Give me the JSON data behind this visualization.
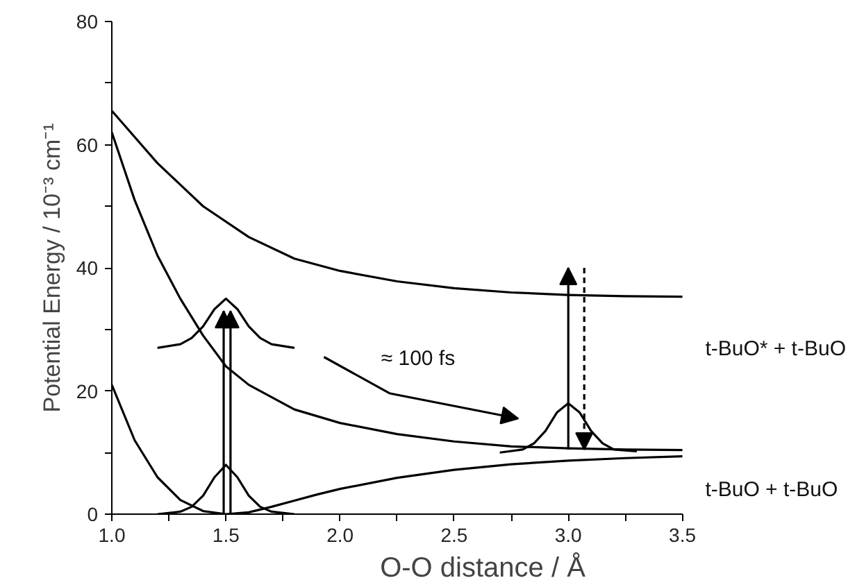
{
  "chart_data": {
    "type": "line",
    "xlabel": "O-O distance / Å",
    "ylabel": "Potential Energy / 10⁻³ cm⁻¹",
    "xlim": [
      1.0,
      3.5
    ],
    "ylim": [
      0,
      80
    ],
    "xticks": [
      {
        "value": 1.0,
        "label": "1.0"
      },
      {
        "value": 1.25,
        "label": null
      },
      {
        "value": 1.5,
        "label": "1.5"
      },
      {
        "value": 1.75,
        "label": null
      },
      {
        "value": 2.0,
        "label": "2.0"
      },
      {
        "value": 2.25,
        "label": null
      },
      {
        "value": 2.5,
        "label": "2.5"
      },
      {
        "value": 2.75,
        "label": null
      },
      {
        "value": 3.0,
        "label": "3.0"
      },
      {
        "value": 3.25,
        "label": null
      },
      {
        "value": 3.5,
        "label": "3.5"
      }
    ],
    "yticks": [
      0,
      {
        "value": 10,
        "label": null
      },
      20,
      {
        "value": 30,
        "label": null
      },
      40,
      {
        "value": 50,
        "label": null
      },
      60,
      {
        "value": 70,
        "label": null
      },
      80
    ],
    "grid": false,
    "marker": "none",
    "line_style": "solid",
    "annotations": [
      "≈ 100 fs",
      "t-BuO* + t-BuO",
      "t-BuO + t-BuO"
    ],
    "series": [
      {
        "color": "#000000",
        "x": [
          1.0,
          1.2,
          1.4,
          1.6,
          1.8,
          2.0,
          2.25,
          2.5,
          2.75,
          3.0,
          3.25,
          3.5
        ],
        "values": [
          65.5,
          57,
          50,
          45,
          41.5,
          39.5,
          37.8,
          36.7,
          36,
          35.6,
          35.4,
          35.3
        ]
      },
      {
        "color": "#000000",
        "x": [
          1.0,
          1.1,
          1.2,
          1.3,
          1.4,
          1.5,
          1.6,
          1.8,
          2.0,
          2.25,
          2.5,
          2.75,
          3.0,
          3.25,
          3.5
        ],
        "values": [
          62,
          51,
          42,
          35,
          29,
          24,
          21,
          17,
          14.8,
          13,
          11.8,
          11,
          10.7,
          10.5,
          10.4
        ]
      },
      {
        "color": "#000000",
        "x": [
          1.0,
          1.1,
          1.2,
          1.3,
          1.4,
          1.5,
          1.6,
          1.7,
          1.8,
          1.9,
          2.0,
          2.25,
          2.5,
          2.75,
          3.0,
          3.25,
          3.5
        ],
        "values": [
          21,
          12,
          6,
          2.3,
          0.5,
          0,
          0.3,
          1.2,
          2.2,
          3.2,
          4.1,
          5.9,
          7.2,
          8.1,
          8.7,
          9.1,
          9.4
        ]
      },
      {
        "color": "#000000",
        "x": [
          1.2,
          1.3,
          1.35,
          1.4,
          1.45,
          1.5,
          1.55,
          1.6,
          1.65,
          1.7,
          1.8
        ],
        "values": [
          0,
          0.4,
          1.2,
          3,
          6,
          8,
          6,
          3,
          1.2,
          0.4,
          0
        ]
      },
      {
        "color": "#000000",
        "x": [
          1.2,
          1.3,
          1.35,
          1.4,
          1.45,
          1.5,
          1.55,
          1.6,
          1.65,
          1.7,
          1.8
        ],
        "values": [
          27,
          27.6,
          28.6,
          30.5,
          33.3,
          35,
          33.3,
          30.5,
          28.6,
          27.6,
          27
        ]
      },
      {
        "color": "#000000",
        "x": [
          2.7,
          2.8,
          2.85,
          2.9,
          2.95,
          3.0,
          3.05,
          3.1,
          3.15,
          3.2,
          3.3
        ],
        "values": [
          10,
          10.5,
          11.5,
          13.5,
          16.5,
          18,
          16.5,
          13.5,
          11.5,
          10.5,
          10.2
        ]
      }
    ]
  }
}
